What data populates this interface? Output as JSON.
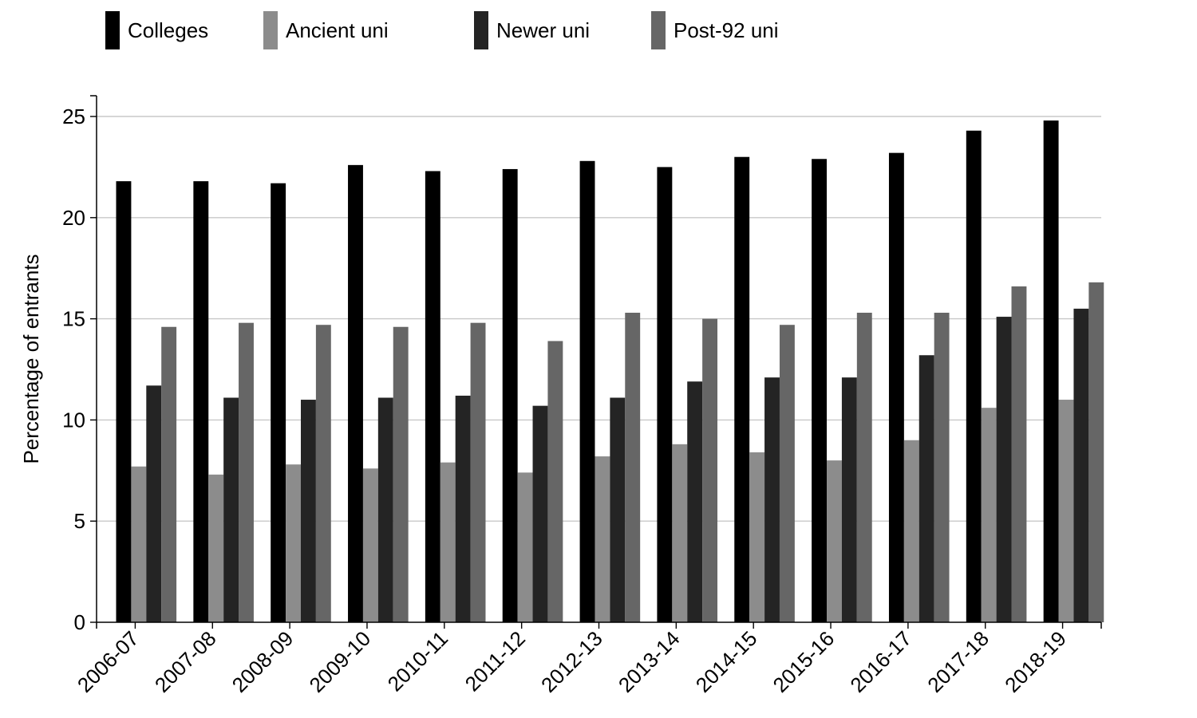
{
  "chart_data": {
    "type": "bar",
    "title": "",
    "xlabel": "",
    "ylabel": "Percentage of entrants",
    "ylim": [
      0,
      26
    ],
    "yticks": [
      0,
      5,
      10,
      15,
      20,
      25
    ],
    "grid": true,
    "legend_position": "top",
    "categories": [
      "2006-07",
      "2007-08",
      "2008-09",
      "2009-10",
      "2010-11",
      "2011-12",
      "2012-13",
      "2013-14",
      "2014-15",
      "2015-16",
      "2016-17",
      "2017-18",
      "2018-19"
    ],
    "series": [
      {
        "name": "Colleges",
        "color": "#000000",
        "values": [
          21.8,
          21.8,
          21.7,
          22.6,
          22.3,
          22.4,
          22.8,
          22.5,
          23.0,
          22.9,
          23.2,
          24.3,
          24.8
        ]
      },
      {
        "name": "Ancient uni",
        "color": "#8c8c8c",
        "values": [
          7.7,
          7.3,
          7.8,
          7.6,
          7.9,
          7.4,
          8.2,
          8.8,
          8.4,
          8.0,
          9.0,
          10.6,
          11.0
        ]
      },
      {
        "name": "Newer uni",
        "color": "#242424",
        "values": [
          11.7,
          11.1,
          11.0,
          11.1,
          11.2,
          10.7,
          11.1,
          11.9,
          12.1,
          12.1,
          13.2,
          15.1,
          15.5
        ]
      },
      {
        "name": "Post-92 uni",
        "color": "#666666",
        "values": [
          14.6,
          14.8,
          14.7,
          14.6,
          14.8,
          13.9,
          15.3,
          15.0,
          14.7,
          15.3,
          15.3,
          16.6,
          16.8
        ]
      }
    ]
  }
}
